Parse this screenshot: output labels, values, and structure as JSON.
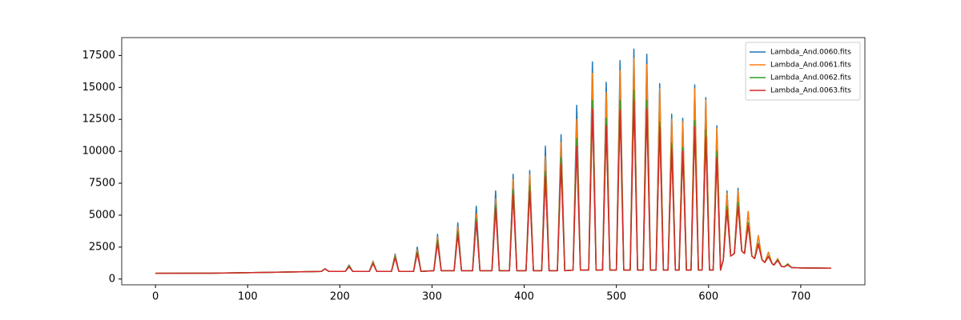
{
  "chart_data": {
    "type": "line",
    "x": [
      0,
      60,
      120,
      150,
      170,
      180,
      184,
      188,
      206,
      210,
      214,
      232,
      236,
      240,
      256,
      260,
      264,
      280,
      284,
      288,
      302,
      306,
      310,
      324,
      328,
      332,
      344,
      348,
      352,
      365,
      369,
      373,
      384,
      388,
      392,
      402,
      406,
      410,
      419,
      423,
      427,
      436,
      440,
      444,
      453,
      457,
      461,
      470,
      474,
      478,
      485,
      489,
      493,
      500,
      504,
      508,
      515,
      519,
      523,
      529,
      533,
      537,
      543,
      547,
      551,
      556,
      560,
      564,
      568,
      572,
      576,
      581,
      585,
      589,
      593,
      597,
      601,
      605,
      609,
      613,
      616,
      620,
      624,
      628,
      632,
      636,
      639,
      643,
      647,
      650,
      654,
      658,
      661,
      665,
      669,
      671,
      675,
      679,
      682,
      686,
      690,
      700,
      733
    ],
    "series": [
      {
        "name": "Lambda_And.0060.fits",
        "color": "#1f77b4",
        "values": [
          450,
          460,
          520,
          560,
          580,
          600,
          800,
          600,
          600,
          1100,
          600,
          600,
          1400,
          600,
          600,
          1950,
          600,
          600,
          2500,
          600,
          650,
          3500,
          650,
          650,
          4400,
          650,
          650,
          5700,
          650,
          650,
          6900,
          650,
          650,
          8200,
          650,
          650,
          8500,
          650,
          650,
          10400,
          650,
          650,
          11300,
          650,
          700,
          13600,
          700,
          700,
          17000,
          700,
          700,
          15400,
          700,
          700,
          17100,
          700,
          700,
          18000,
          700,
          700,
          17600,
          700,
          700,
          15300,
          700,
          700,
          12900,
          700,
          700,
          12600,
          700,
          700,
          15200,
          700,
          700,
          14200,
          700,
          700,
          12000,
          700,
          1500,
          6900,
          1800,
          2000,
          7100,
          2200,
          2000,
          5300,
          1800,
          1600,
          3400,
          1500,
          1300,
          2100,
          1200,
          1100,
          1600,
          1000,
          950,
          1200,
          900,
          870,
          850
        ]
      },
      {
        "name": "Lambda_And.0061.fits",
        "color": "#ff7f0e",
        "values": [
          450,
          460,
          520,
          560,
          580,
          600,
          800,
          600,
          600,
          1050,
          600,
          600,
          1350,
          600,
          600,
          1850,
          600,
          600,
          2300,
          600,
          650,
          3300,
          650,
          650,
          4100,
          650,
          650,
          5100,
          650,
          650,
          6300,
          650,
          650,
          7800,
          650,
          650,
          8200,
          650,
          650,
          9600,
          650,
          650,
          10700,
          650,
          700,
          12500,
          700,
          700,
          16100,
          700,
          700,
          14600,
          700,
          700,
          16300,
          700,
          700,
          17300,
          700,
          700,
          16800,
          700,
          700,
          14900,
          700,
          700,
          12500,
          700,
          700,
          12300,
          700,
          700,
          14900,
          700,
          700,
          14000,
          700,
          700,
          11800,
          700,
          1500,
          6700,
          1800,
          2000,
          6900,
          2200,
          2000,
          5300,
          1800,
          1600,
          3400,
          1500,
          1300,
          2100,
          1200,
          1100,
          1600,
          1000,
          950,
          1200,
          900,
          870,
          850
        ]
      },
      {
        "name": "Lambda_And.0062.fits",
        "color": "#2ca02c",
        "values": [
          450,
          460,
          520,
          560,
          580,
          600,
          800,
          600,
          600,
          1000,
          600,
          600,
          1250,
          600,
          600,
          1750,
          600,
          600,
          2100,
          600,
          650,
          3000,
          650,
          650,
          3700,
          650,
          650,
          4700,
          650,
          650,
          5800,
          650,
          650,
          7000,
          650,
          650,
          7300,
          650,
          650,
          8400,
          650,
          650,
          9500,
          650,
          700,
          11000,
          700,
          700,
          14000,
          700,
          700,
          12600,
          700,
          700,
          14000,
          700,
          700,
          14800,
          700,
          700,
          14000,
          700,
          700,
          12300,
          700,
          700,
          10600,
          700,
          700,
          10300,
          700,
          700,
          12400,
          700,
          700,
          11700,
          700,
          700,
          10000,
          700,
          1500,
          5700,
          1800,
          2000,
          6000,
          2200,
          2000,
          4400,
          1800,
          1600,
          2800,
          1500,
          1300,
          1800,
          1200,
          1100,
          1500,
          1000,
          950,
          1150,
          900,
          870,
          850
        ]
      },
      {
        "name": "Lambda_And.0063.fits",
        "color": "#d62728",
        "values": [
          450,
          460,
          520,
          560,
          580,
          600,
          800,
          600,
          600,
          950,
          600,
          600,
          1200,
          600,
          600,
          1650,
          600,
          600,
          2000,
          600,
          650,
          2800,
          650,
          650,
          3500,
          650,
          650,
          4500,
          650,
          650,
          5500,
          650,
          650,
          6600,
          650,
          650,
          6900,
          650,
          650,
          8000,
          650,
          650,
          9000,
          650,
          700,
          10400,
          700,
          700,
          13300,
          700,
          700,
          12000,
          700,
          700,
          13200,
          700,
          700,
          14000,
          700,
          700,
          13300,
          700,
          700,
          11900,
          700,
          700,
          10200,
          700,
          700,
          10000,
          700,
          700,
          11900,
          700,
          700,
          11100,
          700,
          700,
          9500,
          700,
          1500,
          5400,
          1800,
          2000,
          5700,
          2200,
          2000,
          4200,
          1800,
          1600,
          2700,
          1500,
          1300,
          1750,
          1200,
          1100,
          1450,
          1000,
          950,
          1100,
          900,
          870,
          850
        ]
      }
    ],
    "xlim": [
      -36.6,
      769.6
    ],
    "xticks": [
      0,
      100,
      200,
      300,
      400,
      500,
      600,
      700
    ],
    "ylim": [
      -450,
      18900
    ],
    "yticks": [
      0,
      2500,
      5000,
      7500,
      10000,
      12500,
      15000,
      17500
    ],
    "grid": false,
    "legend": "upper right"
  }
}
